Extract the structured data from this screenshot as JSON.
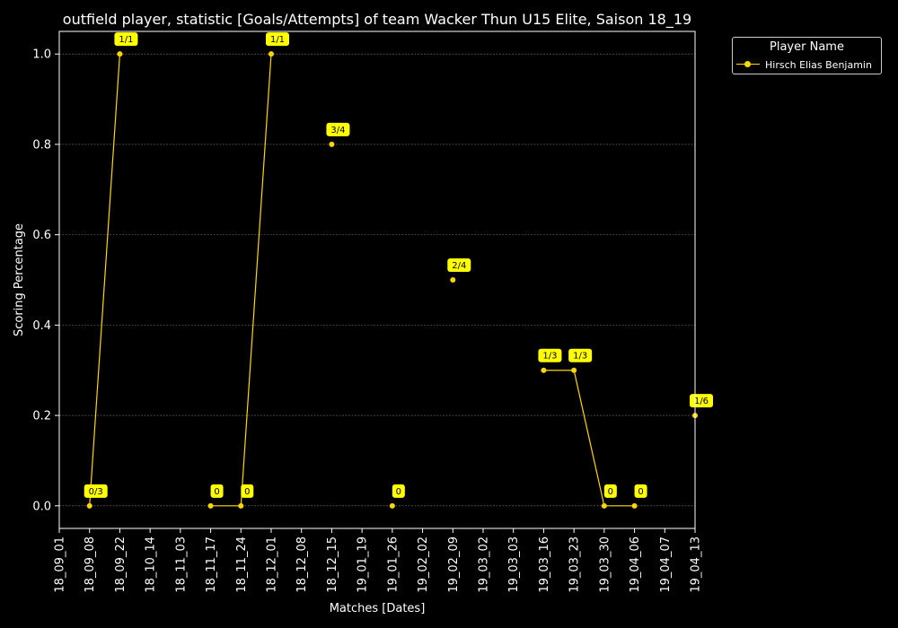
{
  "chart_data": {
    "type": "line",
    "title": "outfield player, statistic [Goals/Attempts] of team Wacker Thun U15 Elite, Saison 18_19",
    "xlabel": "Matches [Dates]",
    "ylabel": "Scoring Percentage",
    "categories": [
      "18_09_01",
      "18_09_08",
      "18_09_22",
      "18_10_14",
      "18_11_03",
      "18_11_17",
      "18_11_24",
      "18_12_01",
      "18_12_08",
      "18_12_15",
      "19_01_19",
      "19_01_26",
      "19_02_02",
      "19_02_09",
      "19_03_02",
      "19_03_03",
      "19_03_16",
      "19_03_23",
      "19_03_30",
      "19_04_06",
      "19_04_07",
      "19_04_13"
    ],
    "yticks": [
      "0.0",
      "0.2",
      "0.4",
      "0.6",
      "0.8",
      "1.0"
    ],
    "ylim": [
      -0.05,
      1.05
    ],
    "grid": true,
    "series": [
      {
        "name": "Hirsch Elias Benjamin",
        "color": "#ffd700",
        "values": [
          null,
          0.0,
          1.0,
          null,
          null,
          0.0,
          0.0,
          1.0,
          null,
          0.8,
          null,
          0.0,
          null,
          0.5,
          null,
          null,
          0.3,
          0.3,
          0.0,
          0.0,
          null,
          0.2
        ],
        "labels": [
          null,
          "0/3",
          "1/1",
          null,
          null,
          "0",
          "0",
          "1/1",
          null,
          "3/4",
          null,
          "0",
          null,
          "2/4",
          null,
          null,
          "1/3",
          "1/3",
          "0",
          "0",
          null,
          "1/6"
        ]
      }
    ],
    "legend": {
      "title": "Player Name",
      "position": "outside-top-right"
    }
  }
}
